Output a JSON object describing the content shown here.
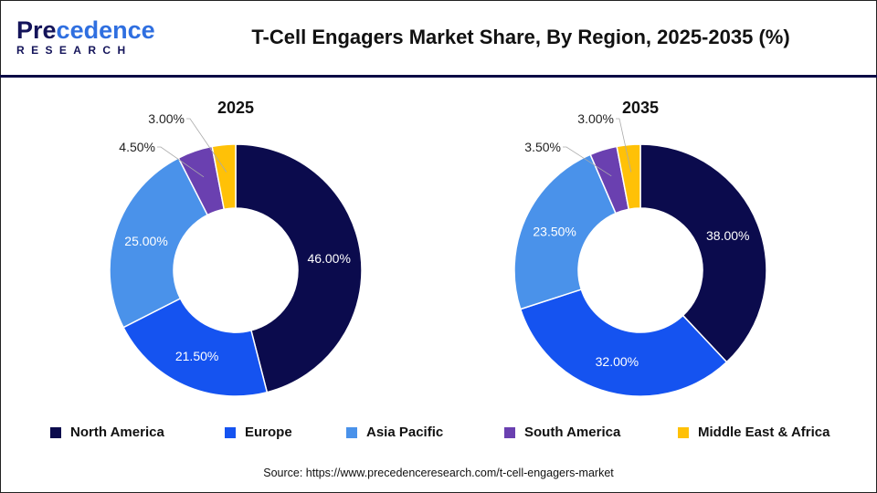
{
  "header": {
    "logo_top": "Precedence",
    "logo_bottom": "RESEARCH",
    "title": "T-Cell Engagers Market Share, By Region, 2025-2035 (%)"
  },
  "colors": {
    "North America": "#0b0b4d",
    "Europe": "#1553f0",
    "Asia Pacific": "#4a92ea",
    "South America": "#6a40b0",
    "Middle East & Africa": "#ffc107"
  },
  "chart_data": [
    {
      "type": "pie",
      "donut": true,
      "title": "2025",
      "categories": [
        "North America",
        "Europe",
        "Asia Pacific",
        "South America",
        "Middle East & Africa"
      ],
      "values": [
        46.0,
        21.5,
        25.0,
        4.5,
        3.0
      ],
      "labels": [
        "46.00%",
        "21.50%",
        "25.00%",
        "4.50%",
        "3.00%"
      ]
    },
    {
      "type": "pie",
      "donut": true,
      "title": "2035",
      "categories": [
        "North America",
        "Europe",
        "Asia Pacific",
        "South America",
        "Middle East & Africa"
      ],
      "values": [
        38.0,
        32.0,
        23.5,
        3.5,
        3.0
      ],
      "labels": [
        "38.00%",
        "32.00%",
        "23.50%",
        "3.50%",
        "3.00%"
      ]
    }
  ],
  "legend": {
    "placement": "bottom",
    "items": [
      "North America",
      "Europe",
      "Asia Pacific",
      "South America",
      "Middle East & Africa"
    ]
  },
  "source": "Source: https://www.precedenceresearch.com/t-cell-engagers-market"
}
